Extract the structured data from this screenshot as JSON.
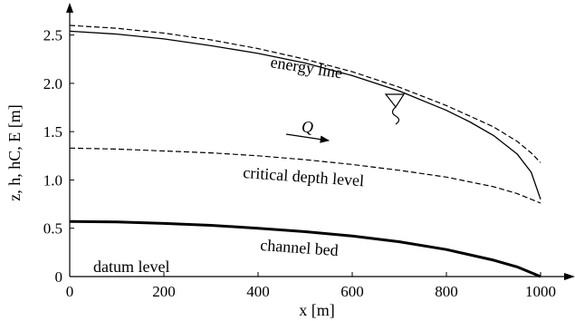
{
  "chart_data": {
    "type": "line",
    "title": "",
    "xlabel": "x [m]",
    "ylabel": "z, h, hC, E [m]",
    "xlim": [
      0,
      1050
    ],
    "ylim": [
      0,
      2.75
    ],
    "x_ticks": [
      0,
      200,
      400,
      600,
      800,
      1000
    ],
    "y_ticks": [
      0,
      0.5,
      1.0,
      1.5,
      2.0,
      2.5
    ],
    "x_tick_labels": [
      "0",
      "200",
      "400",
      "600",
      "800",
      "1000"
    ],
    "y_tick_labels": [
      "0",
      "0.5",
      "1.0",
      "1.5",
      "2.0",
      "2.5"
    ],
    "grid": false,
    "series": [
      {
        "name": "energy line",
        "style": "dashed",
        "x": [
          0,
          100,
          200,
          300,
          400,
          500,
          600,
          700,
          800,
          850,
          900,
          950,
          980,
          1000
        ],
        "y": [
          2.6,
          2.57,
          2.52,
          2.45,
          2.36,
          2.25,
          2.12,
          1.96,
          1.77,
          1.66,
          1.55,
          1.4,
          1.28,
          1.18
        ]
      },
      {
        "name": "water surface",
        "style": "solid",
        "x": [
          0,
          100,
          200,
          300,
          400,
          500,
          600,
          700,
          800,
          850,
          900,
          950,
          980,
          1000
        ],
        "y": [
          2.54,
          2.51,
          2.46,
          2.39,
          2.31,
          2.21,
          2.08,
          1.92,
          1.72,
          1.6,
          1.46,
          1.27,
          1.08,
          0.8
        ]
      },
      {
        "name": "critical depth level",
        "style": "dashed",
        "x": [
          0,
          100,
          200,
          300,
          400,
          500,
          600,
          700,
          800,
          900,
          950,
          1000
        ],
        "y": [
          1.33,
          1.32,
          1.3,
          1.28,
          1.25,
          1.21,
          1.16,
          1.1,
          1.03,
          0.93,
          0.86,
          0.76
        ]
      },
      {
        "name": "channel bed",
        "style": "bold",
        "x": [
          0,
          100,
          200,
          300,
          400,
          500,
          600,
          700,
          800,
          900,
          950,
          1000
        ],
        "y": [
          0.57,
          0.565,
          0.55,
          0.53,
          0.5,
          0.465,
          0.42,
          0.36,
          0.28,
          0.17,
          0.1,
          0.0
        ]
      }
    ],
    "annotations": {
      "energy_line": "energy line",
      "flow": "Q",
      "critical_depth": "critical depth level",
      "channel_bed": "channel bed",
      "datum": "datum level"
    }
  }
}
